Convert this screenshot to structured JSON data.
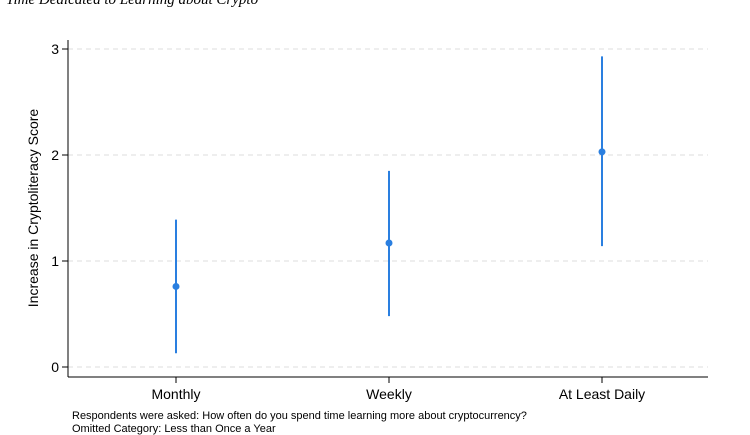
{
  "title": "Time Dedicated to Learning about Crypto",
  "notes": [
    "Respondents were asked: How often do you spend time learning more about cryptocurrency?",
    "Omitted Category: Less than Once a Year"
  ],
  "colors": {
    "marker": "#2a7fe0",
    "grid": "#dcdcdc",
    "axis": "#000000"
  },
  "chart_data": {
    "type": "scatter",
    "subtype": "coefficient plot with confidence intervals",
    "title": "Time Dedicated to Learning about Crypto",
    "xlabel": "",
    "ylabel": "Increase in Cryptoliteracy Score",
    "categories": [
      "Monthly",
      "Weekly",
      "At Least Daily"
    ],
    "estimates": [
      0.76,
      1.17,
      2.03
    ],
    "ci_lower": [
      0.13,
      0.48,
      1.14
    ],
    "ci_upper": [
      1.39,
      1.85,
      2.93
    ],
    "ylim": [
      -0.1,
      3.05
    ],
    "yticks": [
      0,
      1,
      2,
      3
    ],
    "grid": "horizontal dashed",
    "legend": "none"
  }
}
